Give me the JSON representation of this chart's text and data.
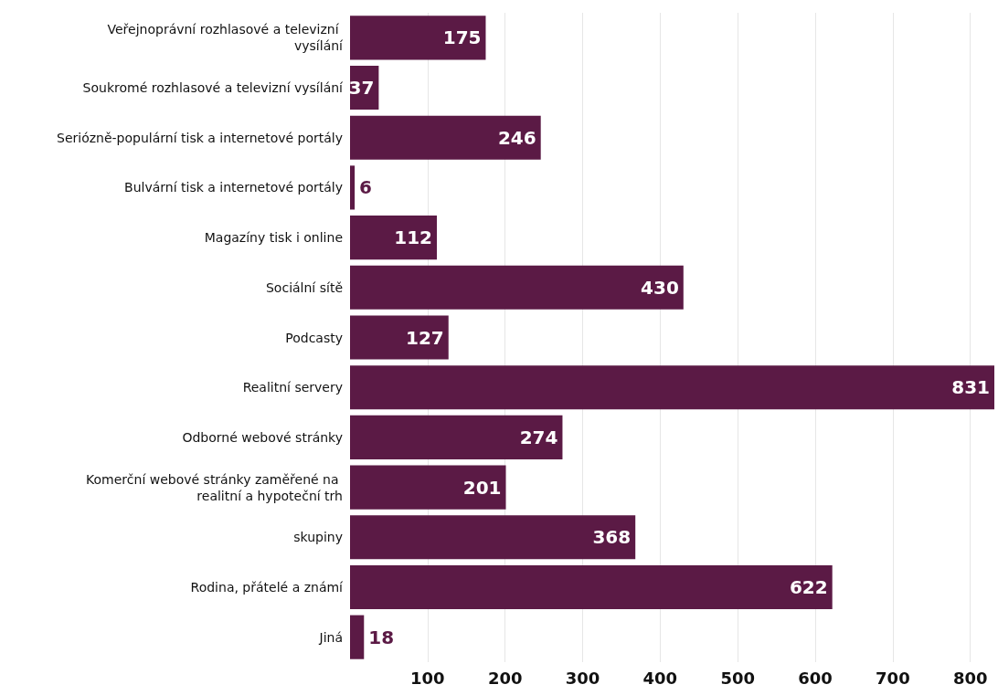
{
  "chart_data": {
    "type": "bar",
    "orientation": "horizontal",
    "categories": [
      "Veřejnoprávní rozhlasové a televizní vysílání",
      "Soukromé rozhlasové a televizní vysílání",
      "Seriózně-populární tisk a internetové portály",
      "Bulvární tisk a internetové portály",
      "Magazíny tisk i online",
      "Sociální sítě",
      "Podcasty",
      "Realitní servery",
      "Odborné webové stránky",
      "Komerční webové stránky zaměřené na realitní a hypoteční trh",
      "skupiny",
      "Rodina, přátelé a známí",
      "Jiná"
    ],
    "values": [
      175,
      37,
      246,
      6,
      112,
      430,
      127,
      831,
      274,
      201,
      368,
      622,
      18
    ],
    "color": "#5b1a45",
    "data_labels": true,
    "grid": "x",
    "xlim": [
      0,
      831
    ],
    "xticks": [
      100,
      200,
      300,
      400,
      500,
      600,
      700,
      800
    ]
  }
}
